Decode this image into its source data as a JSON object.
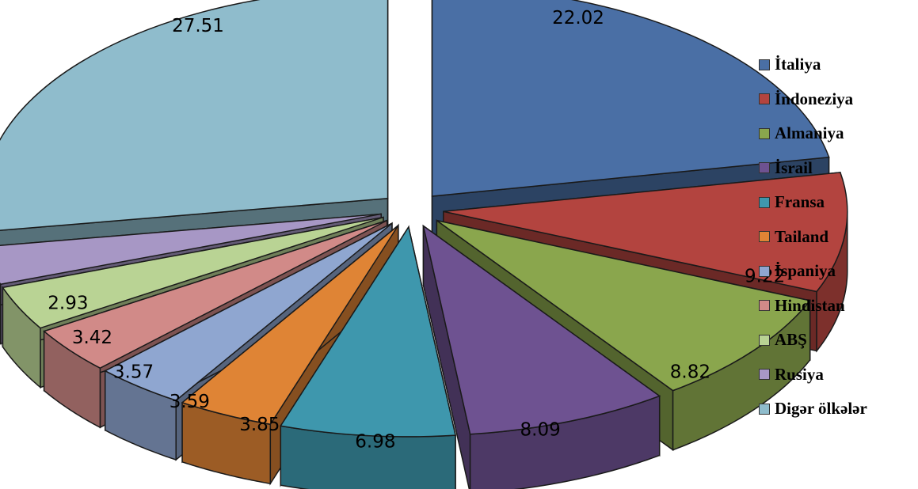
{
  "chart_data": {
    "type": "pie",
    "style": "3d-exploded",
    "title": "",
    "categories": [
      "İtaliya",
      "İndoneziya",
      "Almaniya",
      "İsrail",
      "Fransa",
      "Tailand",
      "İspaniya",
      "Hindistan",
      "ABŞ",
      "Rusiya",
      "Digər ölkələr"
    ],
    "values": [
      22.02,
      9.22,
      8.82,
      8.09,
      6.98,
      3.85,
      3.59,
      3.57,
      3.42,
      2.93,
      27.51
    ],
    "value_labels": [
      "22.02",
      "9.22",
      "8.82",
      "8.09",
      "6.98",
      "3.85",
      "3.59",
      "3.57",
      "3.42",
      "2.93",
      "27.51"
    ],
    "colors": [
      "#4a6fa5",
      "#b3443f",
      "#8aa64d",
      "#6e5291",
      "#3e97ad",
      "#df8435",
      "#8fa6d0",
      "#d18a88",
      "#b9d394",
      "#a797c5",
      "#8fbccc"
    ],
    "legend_position": "right"
  }
}
